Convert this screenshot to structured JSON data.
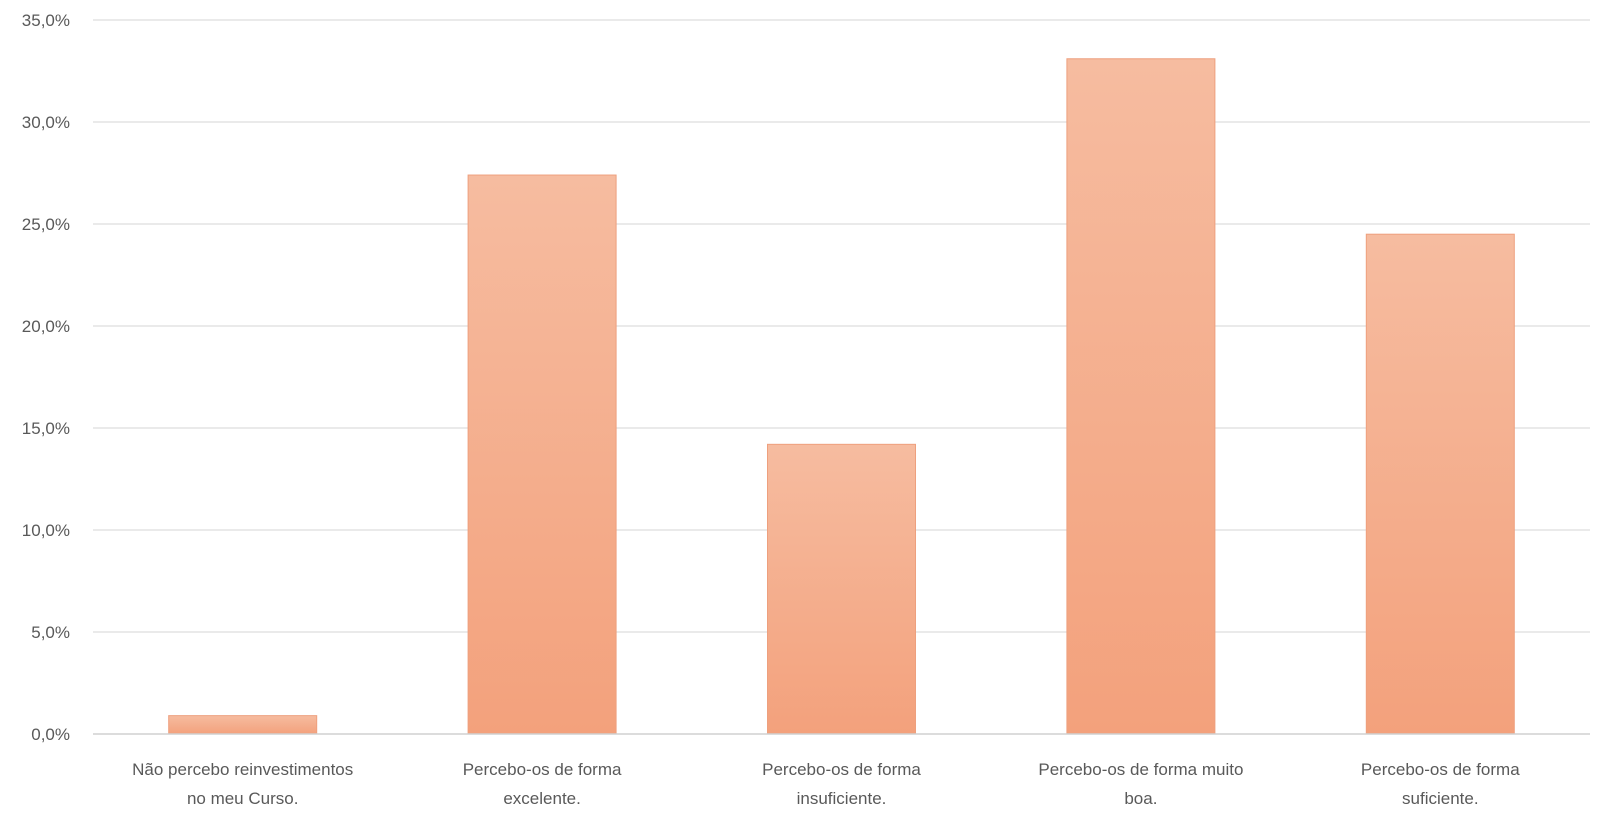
{
  "chart_data": {
    "type": "bar",
    "categories": [
      [
        "Não percebo reinvestimentos",
        "no meu Curso."
      ],
      [
        "Percebo-os de forma",
        "excelente."
      ],
      [
        "Percebo-os de forma",
        "insuficiente."
      ],
      [
        "Percebo-os de forma muito",
        "boa."
      ],
      [
        "Percebo-os de forma",
        "suficiente."
      ]
    ],
    "values": [
      0.9,
      27.4,
      14.2,
      33.1,
      24.5
    ],
    "ylim": [
      0,
      35
    ],
    "yticks": [
      "0,0%",
      "5,0%",
      "10,0%",
      "15,0%",
      "20,0%",
      "25,0%",
      "30,0%",
      "35,0%"
    ],
    "grid": true,
    "colors": {
      "bar_top": "#f6bca0",
      "bar_bottom": "#f3a17c",
      "bar_edge": "#eea07e",
      "grid": "#e4e4e4",
      "axis": "#d0d0d0",
      "text": "#595959"
    }
  }
}
